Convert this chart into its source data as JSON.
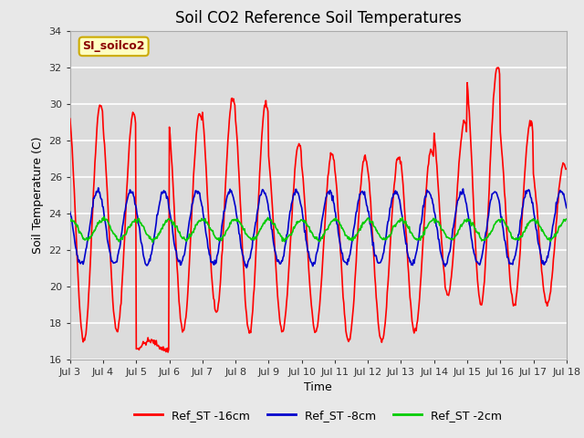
{
  "title": "Soil CO2 Reference Soil Temperatures",
  "xlabel": "Time",
  "ylabel": "Soil Temperature (C)",
  "ylim": [
    16,
    34
  ],
  "yticks": [
    16,
    18,
    20,
    22,
    24,
    26,
    28,
    30,
    32,
    34
  ],
  "xlim": [
    3,
    18
  ],
  "xtick_labels": [
    "Jul 3",
    "Jul 4",
    "Jul 5",
    "Jul 6",
    "Jul 7",
    "Jul 8",
    "Jul 9",
    "Jul 10",
    "Jul 11",
    "Jul 12",
    "Jul 13",
    "Jul 14",
    "Jul 15",
    "Jul 16",
    "Jul 17",
    "Jul 18"
  ],
  "xtick_positions": [
    3,
    4,
    5,
    6,
    7,
    8,
    9,
    10,
    11,
    12,
    13,
    14,
    15,
    16,
    17,
    18
  ],
  "color_red": "#FF0000",
  "color_blue": "#0000CC",
  "color_green": "#00CC00",
  "fig_facecolor": "#E8E8E8",
  "axes_facecolor": "#DCDCDC",
  "grid_color": "#FFFFFF",
  "annotation_text": "SI_soilco2",
  "annotation_bg": "#FFFFC0",
  "annotation_border": "#CCAA00",
  "legend_labels": [
    "Ref_ST -16cm",
    "Ref_ST -8cm",
    "Ref_ST -2cm"
  ],
  "linewidth": 1.2,
  "title_fontsize": 12,
  "label_fontsize": 9,
  "tick_fontsize": 8
}
